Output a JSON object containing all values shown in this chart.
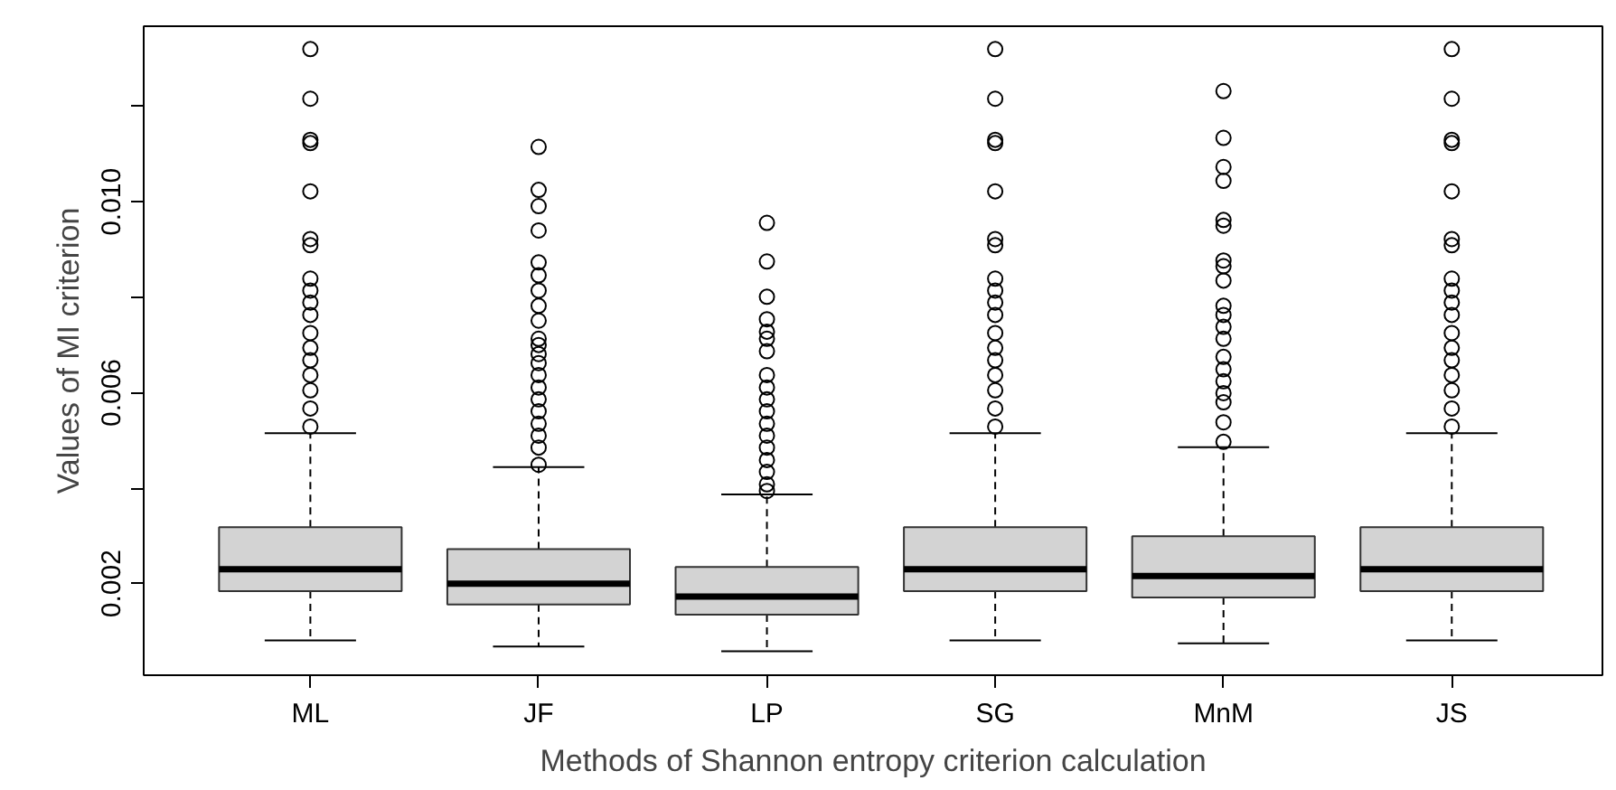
{
  "chart_data": {
    "type": "box",
    "xlabel": "Methods of Shannon entropy criterion calculation",
    "ylabel": "Values of MI criterion",
    "categories": [
      "ML",
      "JF",
      "LP",
      "SG",
      "MnM",
      "JS"
    ],
    "color": "#d3d3d3",
    "grid": false,
    "marker": "circle",
    "ylim": [
      8e-05,
      0.01368
    ],
    "yticks": [
      {
        "value": 0.002,
        "label": "0.002"
      },
      {
        "value": 0.004,
        "label": null
      },
      {
        "value": 0.006,
        "label": "0.006"
      },
      {
        "value": 0.008,
        "label": null
      },
      {
        "value": 0.01,
        "label": "0.010"
      },
      {
        "value": 0.012,
        "label": null
      }
    ],
    "boxes": [
      {
        "low": 0.00081,
        "q1": 0.00184,
        "median": 0.0023,
        "q3": 0.00318,
        "high": 0.00515,
        "outliers": [
          0.0132,
          0.01216,
          0.0113,
          0.01123,
          0.01022,
          0.00922,
          0.00909,
          0.00839,
          0.00814,
          0.00789,
          0.00763,
          0.00725,
          0.00694,
          0.00668,
          0.00637,
          0.00605,
          0.00567,
          0.00529
        ]
      },
      {
        "low": 0.00068,
        "q1": 0.00156,
        "median": 0.002,
        "q3": 0.00272,
        "high": 0.00444,
        "outliers": [
          0.01115,
          0.01025,
          0.00991,
          0.0094,
          0.00873,
          0.00846,
          0.00814,
          0.00782,
          0.00751,
          0.00713,
          0.007,
          0.00681,
          0.00662,
          0.00637,
          0.00611,
          0.00586,
          0.00561,
          0.00535,
          0.0051,
          0.00485,
          0.00449
        ]
      },
      {
        "low": 0.00058,
        "q1": 0.00135,
        "median": 0.00173,
        "q3": 0.00235,
        "high": 0.00387,
        "outliers": [
          0.00956,
          0.00875,
          0.00801,
          0.00754,
          0.00728,
          0.00713,
          0.00687,
          0.00637,
          0.00611,
          0.00586,
          0.00561,
          0.00535,
          0.0051,
          0.00485,
          0.00459,
          0.00434,
          0.00408,
          0.00394
        ]
      },
      {
        "low": 0.00081,
        "q1": 0.00184,
        "median": 0.0023,
        "q3": 0.00318,
        "high": 0.00515,
        "outliers": [
          0.0132,
          0.01216,
          0.0113,
          0.01123,
          0.01022,
          0.00922,
          0.00909,
          0.00839,
          0.00814,
          0.00789,
          0.00763,
          0.00725,
          0.00694,
          0.00668,
          0.00637,
          0.00605,
          0.00567,
          0.00529
        ]
      },
      {
        "low": 0.00075,
        "q1": 0.00171,
        "median": 0.00216,
        "q3": 0.00299,
        "high": 0.00486,
        "outliers": [
          0.01232,
          0.01134,
          0.01073,
          0.01044,
          0.00962,
          0.0095,
          0.00877,
          0.00865,
          0.00835,
          0.00782,
          0.00763,
          0.00738,
          0.00713,
          0.00675,
          0.00649,
          0.00624,
          0.00599,
          0.0058,
          0.00538,
          0.00497
        ]
      },
      {
        "low": 0.00081,
        "q1": 0.00184,
        "median": 0.0023,
        "q3": 0.00318,
        "high": 0.00515,
        "outliers": [
          0.0132,
          0.01216,
          0.0113,
          0.01123,
          0.01022,
          0.00922,
          0.00909,
          0.00839,
          0.00814,
          0.00789,
          0.00763,
          0.00725,
          0.00694,
          0.00668,
          0.00637,
          0.00605,
          0.00567,
          0.00529
        ]
      }
    ]
  }
}
